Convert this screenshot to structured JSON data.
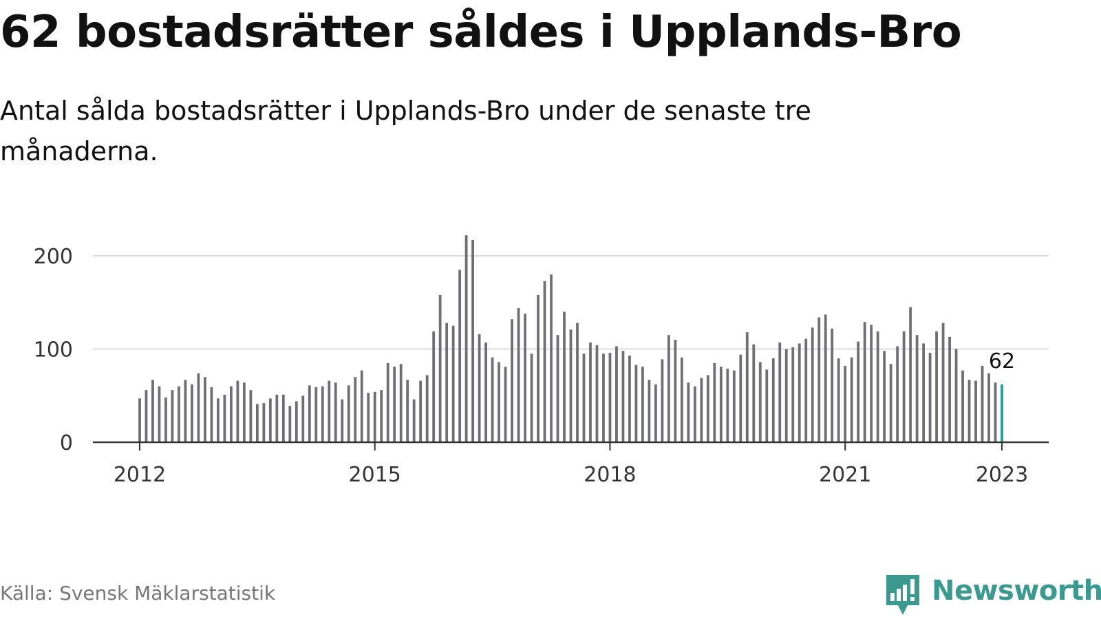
{
  "header": {
    "title": "62 bostadsrätter såldes i Upplands-Bro",
    "subtitle": "Antal sålda bostadsrätter i Upplands-Bro under de senaste tre månaderna."
  },
  "footer": {
    "source": "Källa: Svensk Mäklarstatistik",
    "brand": "Newsworthy"
  },
  "colors": {
    "bar": "#6e6e73",
    "highlight": "#1aa39a",
    "grid": "#dddddd",
    "axis": "#333333",
    "brand": "#3a9a90"
  },
  "icons": {
    "brand_logo": "newsworthy-chart-bubble-icon"
  },
  "chart_data": {
    "type": "bar",
    "title": "62 bostadsrätter såldes i Upplands-Bro",
    "subtitle": "Antal sålda bostadsrätter i Upplands-Bro under de senaste tre månaderna.",
    "xlabel": "",
    "ylabel": "",
    "x_start": "2012-01",
    "x_end": "2023-01",
    "x_ticks": [
      "2012",
      "2015",
      "2018",
      "2021",
      "2023"
    ],
    "y_ticks": [
      0,
      100,
      200
    ],
    "ylim": [
      0,
      220
    ],
    "grid": true,
    "values": [
      47,
      56,
      67,
      60,
      48,
      56,
      60,
      67,
      62,
      74,
      70,
      59,
      47,
      51,
      60,
      66,
      64,
      56,
      41,
      42,
      47,
      51,
      51,
      39,
      44,
      50,
      61,
      59,
      60,
      66,
      64,
      46,
      61,
      70,
      77,
      53,
      54,
      56,
      85,
      81,
      84,
      67,
      46,
      66,
      72,
      119,
      158,
      128,
      125,
      185,
      222,
      217,
      116,
      107,
      91,
      86,
      81,
      132,
      144,
      138,
      95,
      158,
      173,
      180,
      115,
      140,
      121,
      128,
      95,
      107,
      104,
      95,
      96,
      103,
      98,
      93,
      83,
      81,
      67,
      62,
      89,
      115,
      110,
      91,
      64,
      60,
      69,
      72,
      85,
      81,
      79,
      77,
      94,
      118,
      105,
      86,
      78,
      90,
      107,
      100,
      102,
      106,
      111,
      123,
      134,
      137,
      122,
      90,
      82,
      91,
      108,
      129,
      126,
      119,
      98,
      84,
      103,
      119,
      145,
      115,
      106,
      96,
      119,
      128,
      113,
      100,
      77,
      67,
      66,
      82,
      74,
      64,
      62
    ],
    "annotations": [
      {
        "label": "62",
        "value": 62,
        "x": "2023-01"
      }
    ],
    "highlight_last": true
  }
}
